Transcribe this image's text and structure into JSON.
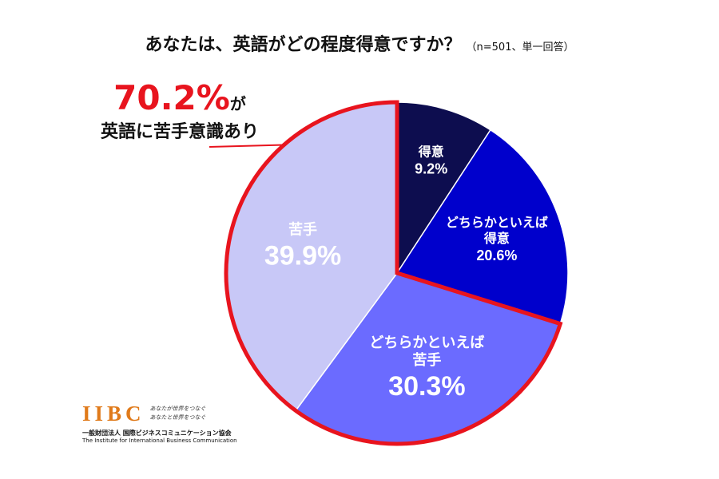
{
  "chart_data": {
    "type": "pie",
    "title": "あなたは、英語がどの程度得意ですか？",
    "subtitle": "（n=501、単一回答）",
    "slices": [
      {
        "label_lines": [
          "得意"
        ],
        "value": 9.2,
        "value_text": "9.2%",
        "color": "#0d0d4f"
      },
      {
        "label_lines": [
          "どちらかといえば",
          "得意"
        ],
        "value": 20.6,
        "value_text": "20.6%",
        "color": "#0000cc"
      },
      {
        "label_lines": [
          "どちらかといえば",
          "苦手"
        ],
        "value": 30.3,
        "value_text": "30.3%",
        "color": "#6b6bff"
      },
      {
        "label_lines": [
          "苦手"
        ],
        "value": 39.9,
        "value_text": "39.9%",
        "color": "#c8c8f7"
      }
    ],
    "highlight": {
      "value_text": "70.2%",
      "suffix": "が",
      "text": "英語に苦手意識あり",
      "color": "#e8141e"
    }
  },
  "logo": {
    "mark": "IIBC",
    "tagline1": "あなたが世界をつなぐ",
    "tagline2": "あなたと世界をつなぐ",
    "org_ja": "一般財団法人 国際ビジネスコミュニケーション協会",
    "org_en": "The Institute for International Business Communication"
  }
}
